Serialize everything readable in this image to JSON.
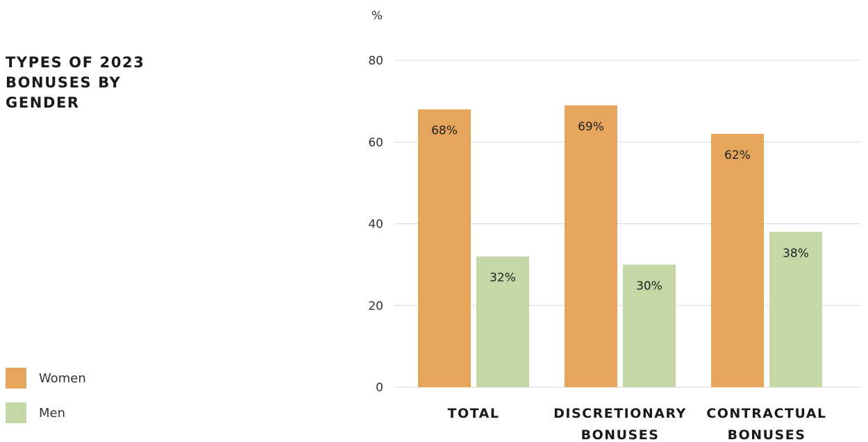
{
  "colors": {
    "women": "#E5A55D",
    "men": "#C3D8A6",
    "grid": "#D9D9D9"
  },
  "legend": [
    {
      "label": "Women",
      "color": "#E5A55D"
    },
    {
      "label": "Men",
      "color": "#C3D8A6"
    }
  ],
  "chart_data": {
    "type": "bar",
    "title": "TYPES OF 2023 BONUSES BY GENDER",
    "ylabel": "%",
    "xlabel": "",
    "ylim": [
      0,
      80
    ],
    "yticks": [
      0,
      20,
      40,
      60,
      80
    ],
    "grid": true,
    "legend_position": "bottom-left",
    "categories": [
      [
        "TOTAL"
      ],
      [
        "DISCRETIONARY",
        "BONUSES"
      ],
      [
        "CONTRACTUAL",
        "BONUSES"
      ]
    ],
    "series": [
      {
        "name": "Women",
        "color": "#E5A55D",
        "values": [
          68,
          69,
          62
        ],
        "labels": [
          "68%",
          "69%",
          "62%"
        ]
      },
      {
        "name": "Men",
        "color": "#C3D8A6",
        "values": [
          32,
          30,
          38
        ],
        "labels": [
          "32%",
          "30%",
          "38%"
        ]
      }
    ]
  }
}
